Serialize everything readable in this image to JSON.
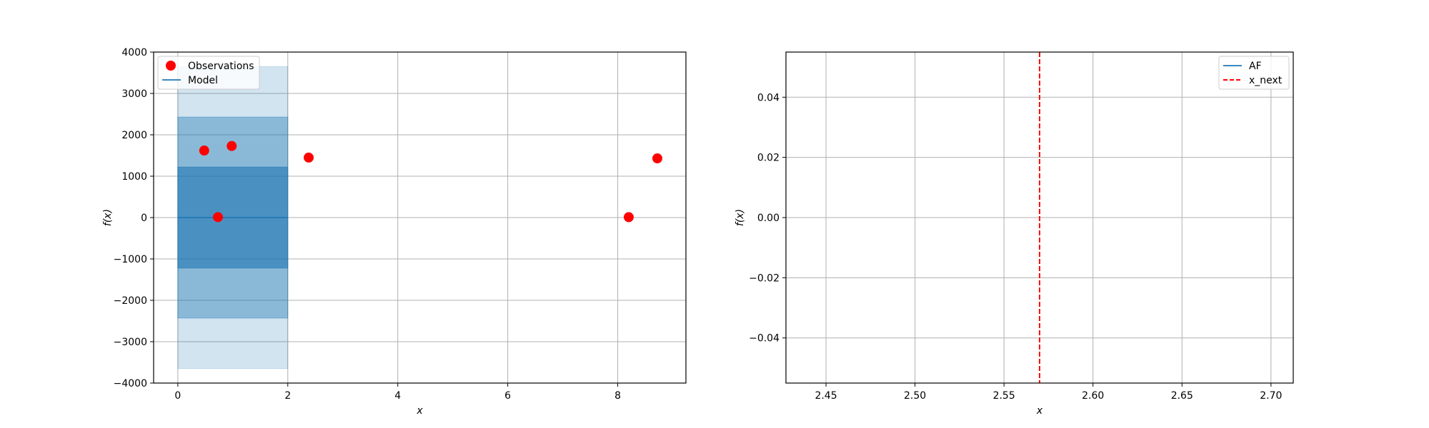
{
  "chart_data": [
    {
      "type": "scatter",
      "title": "",
      "xlabel": "x",
      "ylabel": "f(x)",
      "xlim": [
        -0.44,
        9.24
      ],
      "ylim": [
        -4000,
        4000
      ],
      "xticks": [
        0,
        2,
        4,
        6,
        8
      ],
      "yticks": [
        -4000,
        -3000,
        -2000,
        -1000,
        0,
        1000,
        2000,
        3000,
        4000
      ],
      "xtick_labels": [
        "0",
        "2",
        "4",
        "6",
        "8"
      ],
      "ytick_labels": [
        "−4000",
        "−3000",
        "−2000",
        "−1000",
        "0",
        "1000",
        "2000",
        "3000",
        "4000"
      ],
      "grid": true,
      "legend_position": "top-left",
      "legend": [
        "Observations",
        "Model"
      ],
      "colors": {
        "observations": "#ff0000",
        "model": "#1f77b4"
      },
      "series": [
        {
          "name": "Observations",
          "kind": "points",
          "x": [
            0.48,
            0.73,
            0.98,
            2.38,
            8.2,
            8.72
          ],
          "y": [
            1620,
            10,
            1730,
            1450,
            10,
            1430
          ]
        },
        {
          "name": "Model",
          "kind": "line",
          "x": [
            0,
            2
          ],
          "y": [
            0,
            0
          ]
        }
      ],
      "bands": [
        {
          "x": [
            0,
            2
          ],
          "lower": -3650,
          "upper": 3650,
          "alpha": 0.2
        },
        {
          "x": [
            0,
            2
          ],
          "lower": -2430,
          "upper": 2430,
          "alpha": 0.4
        },
        {
          "x": [
            0,
            2
          ],
          "lower": -1220,
          "upper": 1220,
          "alpha": 0.6
        }
      ]
    },
    {
      "type": "line",
      "title": "",
      "xlabel": "x",
      "ylabel": "f(x)",
      "xlim": [
        2.4275,
        2.7125
      ],
      "ylim": [
        -0.055,
        0.055
      ],
      "xticks": [
        2.45,
        2.5,
        2.55,
        2.6,
        2.65,
        2.7
      ],
      "yticks": [
        -0.04,
        -0.02,
        0.0,
        0.02,
        0.04
      ],
      "xtick_labels": [
        "2.45",
        "2.50",
        "2.55",
        "2.60",
        "2.65",
        "2.70"
      ],
      "ytick_labels": [
        "−0.04",
        "−0.02",
        "0.00",
        "0.02",
        "0.04"
      ],
      "grid": true,
      "legend_position": "top-right",
      "legend": [
        "AF",
        "x_next"
      ],
      "colors": {
        "af": "#1f77b4",
        "x_next": "#ff0000"
      },
      "series": [
        {
          "name": "AF",
          "kind": "line",
          "x": [],
          "y": []
        },
        {
          "name": "x_next",
          "kind": "vline",
          "x": 2.57
        }
      ]
    }
  ]
}
